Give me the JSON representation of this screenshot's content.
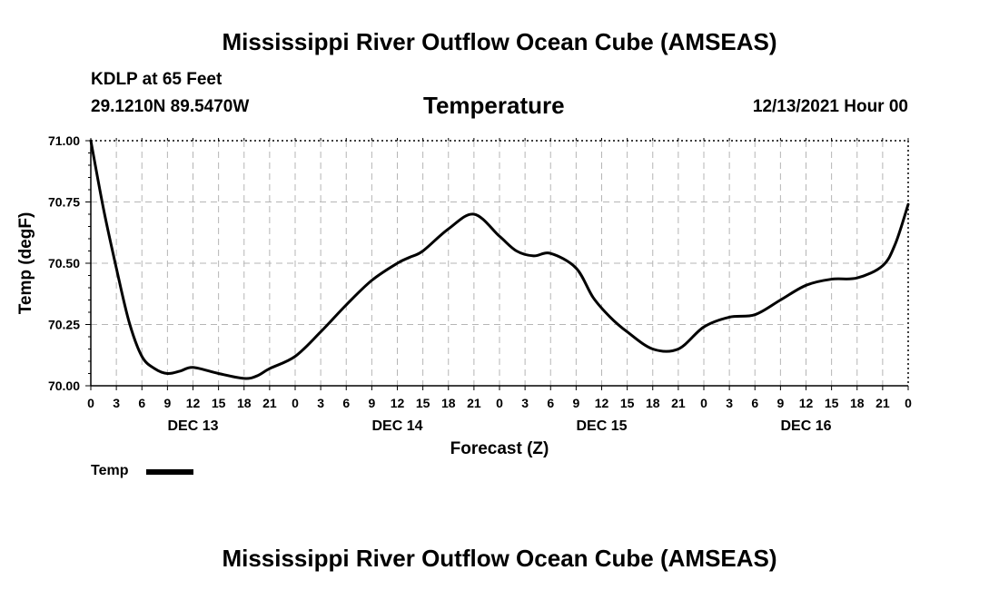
{
  "header": {
    "title": "Mississippi River Outflow Ocean Cube (AMSEAS)",
    "station": "KDLP at 65 Feet",
    "coords": "29.1210N  89.5470W",
    "panel_title": "Temperature",
    "datetime": "12/13/2021 Hour 00"
  },
  "legend": {
    "label": "Temp"
  },
  "footer": {
    "title": "Mississippi River Outflow Ocean Cube (AMSEAS)"
  },
  "chart_data": {
    "type": "line",
    "title": "Temperature",
    "xlabel": "Forecast (Z)",
    "ylabel": "Temp (degF)",
    "xlim": [
      0,
      96
    ],
    "ylim": [
      70.0,
      71.0
    ],
    "grid": true,
    "legend_position": "bottom-left",
    "x_ticks": [
      0,
      3,
      6,
      9,
      12,
      15,
      18,
      21,
      24,
      27,
      30,
      33,
      36,
      39,
      42,
      45,
      48,
      51,
      54,
      57,
      60,
      63,
      66,
      69,
      72,
      75,
      78,
      81,
      84,
      87,
      90,
      93,
      96
    ],
    "x_tick_labels": [
      "0",
      "3",
      "6",
      "9",
      "12",
      "15",
      "18",
      "21",
      "0",
      "3",
      "6",
      "9",
      "12",
      "15",
      "18",
      "21",
      "0",
      "3",
      "6",
      "9",
      "12",
      "15",
      "18",
      "21",
      "0",
      "3",
      "6",
      "9",
      "12",
      "15",
      "18",
      "21",
      "0"
    ],
    "day_labels": [
      {
        "label": "DEC 13",
        "hour": 12
      },
      {
        "label": "DEC 14",
        "hour": 36
      },
      {
        "label": "DEC 15",
        "hour": 60
      },
      {
        "label": "DEC 16",
        "hour": 84
      }
    ],
    "y_ticks": [
      70.0,
      70.25,
      70.5,
      70.75,
      71.0
    ],
    "y_tick_labels": [
      "70.00",
      "70.25",
      "70.50",
      "70.75",
      "71.00"
    ],
    "series": [
      {
        "name": "Temp",
        "color": "#000000",
        "x": [
          0,
          1.5,
          3,
          4.5,
          6,
          7.5,
          9,
          10.5,
          12,
          15,
          18,
          19.5,
          21,
          24,
          27,
          30,
          33,
          36,
          37.5,
          39,
          42,
          45,
          48,
          50,
          52,
          54,
          57,
          59,
          61,
          63,
          66,
          69,
          72,
          75,
          78,
          81,
          84,
          87,
          90,
          93,
          94.5,
          96
        ],
        "y": [
          71.0,
          70.72,
          70.48,
          70.26,
          70.12,
          70.07,
          70.05,
          70.06,
          70.075,
          70.05,
          70.03,
          70.04,
          70.07,
          70.12,
          70.22,
          70.33,
          70.43,
          70.5,
          70.525,
          70.55,
          70.64,
          70.7,
          70.61,
          70.55,
          70.53,
          70.54,
          70.48,
          70.36,
          70.28,
          70.22,
          70.15,
          70.15,
          70.24,
          70.28,
          70.29,
          70.35,
          70.41,
          70.435,
          70.44,
          70.49,
          70.58,
          70.74
        ]
      }
    ]
  }
}
